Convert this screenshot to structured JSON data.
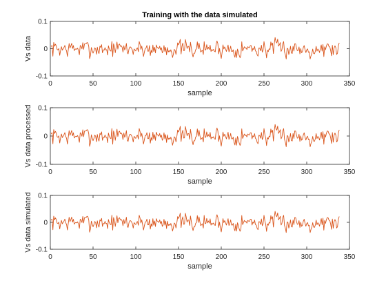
{
  "chart_data": [
    {
      "type": "line",
      "title": "Training with the data simulated",
      "xlabel": "sample",
      "ylabel": "Vs data",
      "xlim": [
        0,
        350
      ],
      "ylim": [
        -0.1,
        0.1
      ],
      "xticks": [
        "0",
        "50",
        "100",
        "150",
        "200",
        "250",
        "300",
        "350"
      ],
      "yticks": [
        "0.1",
        "0",
        "-0.1"
      ],
      "grid": false,
      "line_color": "#D95319",
      "series": [
        {
          "samples": 338,
          "seed": 7
        }
      ]
    },
    {
      "type": "line",
      "title": "",
      "xlabel": "sample",
      "ylabel": "Vs data processed",
      "xlim": [
        0,
        350
      ],
      "ylim": [
        -0.1,
        0.1
      ],
      "xticks": [
        "0",
        "50",
        "100",
        "150",
        "200",
        "250",
        "300",
        "350"
      ],
      "yticks": [
        "0.1",
        "0",
        "-0.1"
      ],
      "grid": false,
      "line_color": "#D95319",
      "series": [
        {
          "samples": 338,
          "seed": 7
        }
      ]
    },
    {
      "type": "line",
      "title": "",
      "xlabel": "sample",
      "ylabel": "Vs data simulated",
      "xlim": [
        0,
        350
      ],
      "ylim": [
        -0.1,
        0.1
      ],
      "xticks": [
        "0",
        "50",
        "100",
        "150",
        "200",
        "250",
        "300",
        "350"
      ],
      "yticks": [
        "0.1",
        "0",
        "-0.1"
      ],
      "grid": false,
      "line_color": "#D95319",
      "series": [
        {
          "samples": 338,
          "seed": 7
        }
      ]
    }
  ]
}
